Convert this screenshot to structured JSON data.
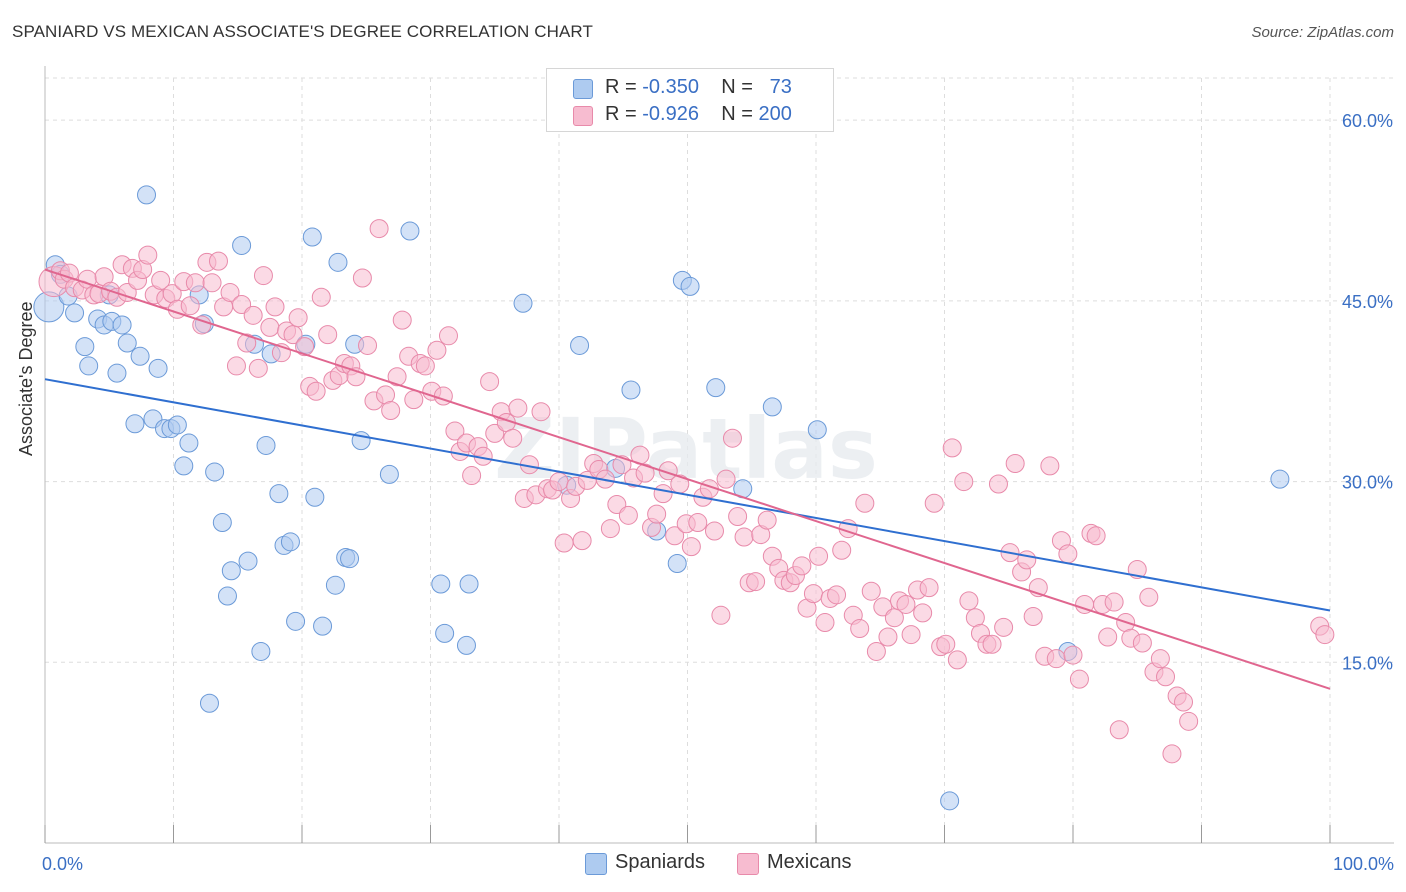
{
  "header": {
    "title": "SPANIARD VS MEXICAN ASSOCIATE'S DEGREE CORRELATION CHART",
    "source": "Source: ZipAtlas.com"
  },
  "legend": {
    "rows": [
      {
        "r_label": "R = ",
        "r_value": "-0.350",
        "n_label": "N = ",
        "n_value": "73"
      },
      {
        "r_label": "R = ",
        "r_value": "-0.926",
        "n_label": "N = ",
        "n_value": "200"
      }
    ]
  },
  "watermark": "ZIPatlas",
  "colors": {
    "spaniards_fill": "#aecbf0",
    "spaniards_stroke": "#6b9ad8",
    "spaniards_line": "#2f6fd0",
    "mexicans_fill": "#f7bcd0",
    "mexicans_stroke": "#e88aaa",
    "mexicans_line": "#e0668f",
    "axis_text": "#3a6fc4",
    "grid": "#dddddd"
  },
  "chart_data": {
    "type": "scatter",
    "title": "SPANIARD VS MEXICAN ASSOCIATE'S DEGREE CORRELATION CHART",
    "xlabel": "",
    "ylabel": "Associate's Degree",
    "xlim": [
      0,
      100
    ],
    "ylim": [
      0,
      63.5
    ],
    "x_tick_labels": [
      "0.0%",
      "100.0%"
    ],
    "y_ticks": [
      15,
      30,
      45,
      60
    ],
    "y_tick_labels": [
      "15.0%",
      "30.0%",
      "45.0%",
      "60.0%"
    ],
    "grid": true,
    "legend_position": "top-center",
    "series": [
      {
        "name": "Spaniards",
        "r": -0.35,
        "n": 73,
        "trend": {
          "x": [
            0,
            100
          ],
          "y": [
            38.5,
            19.3
          ]
        },
        "points": [
          [
            0.3,
            44.5
          ],
          [
            0.8,
            48.0
          ],
          [
            1.2,
            47.2
          ],
          [
            1.8,
            45.4
          ],
          [
            2.3,
            44.0
          ],
          [
            3.1,
            41.2
          ],
          [
            3.4,
            39.6
          ],
          [
            4.1,
            43.5
          ],
          [
            4.6,
            43.0
          ],
          [
            5.0,
            45.5
          ],
          [
            5.2,
            43.3
          ],
          [
            5.6,
            39.0
          ],
          [
            6.0,
            43.0
          ],
          [
            6.4,
            41.5
          ],
          [
            7.0,
            34.8
          ],
          [
            7.4,
            40.4
          ],
          [
            7.9,
            53.8
          ],
          [
            8.4,
            35.2
          ],
          [
            8.8,
            39.4
          ],
          [
            9.3,
            34.4
          ],
          [
            9.8,
            34.4
          ],
          [
            10.3,
            34.7
          ],
          [
            10.8,
            31.3
          ],
          [
            11.2,
            33.2
          ],
          [
            12.0,
            45.5
          ],
          [
            12.4,
            43.1
          ],
          [
            12.8,
            11.6
          ],
          [
            13.2,
            30.8
          ],
          [
            13.8,
            26.6
          ],
          [
            14.2,
            20.5
          ],
          [
            14.5,
            22.6
          ],
          [
            15.3,
            49.6
          ],
          [
            15.8,
            23.4
          ],
          [
            16.3,
            41.4
          ],
          [
            16.8,
            15.9
          ],
          [
            17.2,
            33.0
          ],
          [
            17.6,
            40.6
          ],
          [
            18.2,
            29.0
          ],
          [
            18.6,
            24.7
          ],
          [
            19.1,
            25.0
          ],
          [
            19.5,
            18.4
          ],
          [
            20.3,
            41.4
          ],
          [
            20.8,
            50.3
          ],
          [
            21.0,
            28.7
          ],
          [
            21.6,
            18.0
          ],
          [
            22.6,
            21.4
          ],
          [
            22.8,
            48.2
          ],
          [
            23.4,
            23.7
          ],
          [
            23.7,
            23.6
          ],
          [
            24.1,
            41.4
          ],
          [
            24.6,
            33.4
          ],
          [
            26.8,
            30.6
          ],
          [
            28.4,
            50.8
          ],
          [
            30.8,
            21.5
          ],
          [
            31.1,
            17.4
          ],
          [
            32.8,
            16.4
          ],
          [
            33.0,
            21.5
          ],
          [
            37.2,
            44.8
          ],
          [
            40.6,
            29.7
          ],
          [
            41.6,
            41.3
          ],
          [
            44.4,
            31.1
          ],
          [
            45.6,
            37.6
          ],
          [
            47.6,
            25.9
          ],
          [
            49.2,
            23.2
          ],
          [
            49.6,
            46.7
          ],
          [
            50.2,
            46.2
          ],
          [
            52.2,
            37.8
          ],
          [
            54.3,
            29.4
          ],
          [
            56.6,
            36.2
          ],
          [
            60.1,
            34.3
          ],
          [
            70.4,
            3.5
          ],
          [
            79.6,
            15.9
          ],
          [
            96.1,
            30.2
          ]
        ]
      },
      {
        "name": "Mexicans",
        "r": -0.926,
        "n": 200,
        "trend": {
          "x": [
            0,
            100
          ],
          "y": [
            47.6,
            12.8
          ]
        },
        "points": [
          [
            0.7,
            46.6
          ],
          [
            1.2,
            47.5
          ],
          [
            1.5,
            46.8
          ],
          [
            1.9,
            47.3
          ],
          [
            2.3,
            46.1
          ],
          [
            2.9,
            45.9
          ],
          [
            3.3,
            46.8
          ],
          [
            3.8,
            45.5
          ],
          [
            4.2,
            45.6
          ],
          [
            4.6,
            47.0
          ],
          [
            5.1,
            45.8
          ],
          [
            5.6,
            45.3
          ],
          [
            6.0,
            48.0
          ],
          [
            6.4,
            45.7
          ],
          [
            6.8,
            47.7
          ],
          [
            7.2,
            46.7
          ],
          [
            7.6,
            47.6
          ],
          [
            8.0,
            48.8
          ],
          [
            8.5,
            45.5
          ],
          [
            9.0,
            46.7
          ],
          [
            9.4,
            45.2
          ],
          [
            9.9,
            45.6
          ],
          [
            10.3,
            44.3
          ],
          [
            10.8,
            46.6
          ],
          [
            11.3,
            44.6
          ],
          [
            11.7,
            46.5
          ],
          [
            12.2,
            43.0
          ],
          [
            12.6,
            48.2
          ],
          [
            13.0,
            46.5
          ],
          [
            13.5,
            48.3
          ],
          [
            13.9,
            44.5
          ],
          [
            14.4,
            45.7
          ],
          [
            14.9,
            39.6
          ],
          [
            15.3,
            44.7
          ],
          [
            15.7,
            41.5
          ],
          [
            16.2,
            43.8
          ],
          [
            16.6,
            39.4
          ],
          [
            17.0,
            47.1
          ],
          [
            17.5,
            42.8
          ],
          [
            17.9,
            44.5
          ],
          [
            18.4,
            40.7
          ],
          [
            18.8,
            42.5
          ],
          [
            19.3,
            42.2
          ],
          [
            19.7,
            43.6
          ],
          [
            20.2,
            41.2
          ],
          [
            20.6,
            37.9
          ],
          [
            21.1,
            37.5
          ],
          [
            21.5,
            45.3
          ],
          [
            22.0,
            42.2
          ],
          [
            22.4,
            38.4
          ],
          [
            22.9,
            38.8
          ],
          [
            23.3,
            39.8
          ],
          [
            23.8,
            39.6
          ],
          [
            24.2,
            38.7
          ],
          [
            24.7,
            46.9
          ],
          [
            25.1,
            41.3
          ],
          [
            25.6,
            36.7
          ],
          [
            26.0,
            51.0
          ],
          [
            26.5,
            37.2
          ],
          [
            26.9,
            35.9
          ],
          [
            27.4,
            38.7
          ],
          [
            27.8,
            43.4
          ],
          [
            28.3,
            40.4
          ],
          [
            28.7,
            36.8
          ],
          [
            29.2,
            39.8
          ],
          [
            29.6,
            39.6
          ],
          [
            30.1,
            37.5
          ],
          [
            30.5,
            40.9
          ],
          [
            31.0,
            37.1
          ],
          [
            31.4,
            42.1
          ],
          [
            31.9,
            34.2
          ],
          [
            32.3,
            32.5
          ],
          [
            32.8,
            33.2
          ],
          [
            33.2,
            30.5
          ],
          [
            33.7,
            32.9
          ],
          [
            34.1,
            32.1
          ],
          [
            34.6,
            38.3
          ],
          [
            35.0,
            34.0
          ],
          [
            35.5,
            35.8
          ],
          [
            35.9,
            34.9
          ],
          [
            36.4,
            33.6
          ],
          [
            36.8,
            36.1
          ],
          [
            37.3,
            28.6
          ],
          [
            37.7,
            31.4
          ],
          [
            38.2,
            28.9
          ],
          [
            38.6,
            35.8
          ],
          [
            39.1,
            29.4
          ],
          [
            39.5,
            29.3
          ],
          [
            40.0,
            30.0
          ],
          [
            40.4,
            24.9
          ],
          [
            40.9,
            28.6
          ],
          [
            41.3,
            29.6
          ],
          [
            41.8,
            25.1
          ],
          [
            42.2,
            30.1
          ],
          [
            42.7,
            31.5
          ],
          [
            43.1,
            31.0
          ],
          [
            43.6,
            30.2
          ],
          [
            44.0,
            26.1
          ],
          [
            44.5,
            28.1
          ],
          [
            44.9,
            31.4
          ],
          [
            45.4,
            27.2
          ],
          [
            45.8,
            30.3
          ],
          [
            46.3,
            32.2
          ],
          [
            46.7,
            30.7
          ],
          [
            47.2,
            26.2
          ],
          [
            47.6,
            27.3
          ],
          [
            48.1,
            29.0
          ],
          [
            48.5,
            30.9
          ],
          [
            49.0,
            25.5
          ],
          [
            49.4,
            29.8
          ],
          [
            49.9,
            26.5
          ],
          [
            50.3,
            24.6
          ],
          [
            50.8,
            26.6
          ],
          [
            51.2,
            28.7
          ],
          [
            51.7,
            29.4
          ],
          [
            52.1,
            25.9
          ],
          [
            52.6,
            18.9
          ],
          [
            53.0,
            30.2
          ],
          [
            53.5,
            33.6
          ],
          [
            53.9,
            27.1
          ],
          [
            54.4,
            25.4
          ],
          [
            54.8,
            21.6
          ],
          [
            55.3,
            21.7
          ],
          [
            55.7,
            25.6
          ],
          [
            56.2,
            26.8
          ],
          [
            56.6,
            23.8
          ],
          [
            57.1,
            22.8
          ],
          [
            57.5,
            21.8
          ],
          [
            58.0,
            21.6
          ],
          [
            58.4,
            22.2
          ],
          [
            58.9,
            23.0
          ],
          [
            59.3,
            19.5
          ],
          [
            59.8,
            20.7
          ],
          [
            60.2,
            23.8
          ],
          [
            60.7,
            18.3
          ],
          [
            61.1,
            20.3
          ],
          [
            61.6,
            20.6
          ],
          [
            62.0,
            24.3
          ],
          [
            62.5,
            26.1
          ],
          [
            62.9,
            18.9
          ],
          [
            63.4,
            17.8
          ],
          [
            63.8,
            28.2
          ],
          [
            64.3,
            20.9
          ],
          [
            64.7,
            15.9
          ],
          [
            65.2,
            19.6
          ],
          [
            65.6,
            17.1
          ],
          [
            66.1,
            18.7
          ],
          [
            66.5,
            20.1
          ],
          [
            67.0,
            19.8
          ],
          [
            67.4,
            17.3
          ],
          [
            67.9,
            21.0
          ],
          [
            68.3,
            19.1
          ],
          [
            68.8,
            21.2
          ],
          [
            69.2,
            28.2
          ],
          [
            69.7,
            16.3
          ],
          [
            70.1,
            16.5
          ],
          [
            70.6,
            32.8
          ],
          [
            71.0,
            15.2
          ],
          [
            71.5,
            30.0
          ],
          [
            71.9,
            20.1
          ],
          [
            72.4,
            18.7
          ],
          [
            72.8,
            17.4
          ],
          [
            73.3,
            16.5
          ],
          [
            73.7,
            16.5
          ],
          [
            74.2,
            29.8
          ],
          [
            74.6,
            17.9
          ],
          [
            75.1,
            24.1
          ],
          [
            75.5,
            31.5
          ],
          [
            76.0,
            22.5
          ],
          [
            76.4,
            23.5
          ],
          [
            76.9,
            18.8
          ],
          [
            77.3,
            21.2
          ],
          [
            77.8,
            15.5
          ],
          [
            78.2,
            31.3
          ],
          [
            78.7,
            15.3
          ],
          [
            79.1,
            25.1
          ],
          [
            79.6,
            24.0
          ],
          [
            80.0,
            15.6
          ],
          [
            80.5,
            13.6
          ],
          [
            80.9,
            19.8
          ],
          [
            81.4,
            25.7
          ],
          [
            81.8,
            25.5
          ],
          [
            82.3,
            19.8
          ],
          [
            82.7,
            17.1
          ],
          [
            83.2,
            20.0
          ],
          [
            83.6,
            9.4
          ],
          [
            84.1,
            18.3
          ],
          [
            84.5,
            17.0
          ],
          [
            85.0,
            22.7
          ],
          [
            85.4,
            16.6
          ],
          [
            85.9,
            20.4
          ],
          [
            86.3,
            14.2
          ],
          [
            86.8,
            15.3
          ],
          [
            87.2,
            13.8
          ],
          [
            87.7,
            7.4
          ],
          [
            88.1,
            12.2
          ],
          [
            88.6,
            11.7
          ],
          [
            89.0,
            10.1
          ],
          [
            99.2,
            18.0
          ],
          [
            99.6,
            17.3
          ]
        ]
      }
    ]
  },
  "bottom_legend": {
    "items": [
      {
        "label": "Spaniards"
      },
      {
        "label": "Mexicans"
      }
    ]
  }
}
